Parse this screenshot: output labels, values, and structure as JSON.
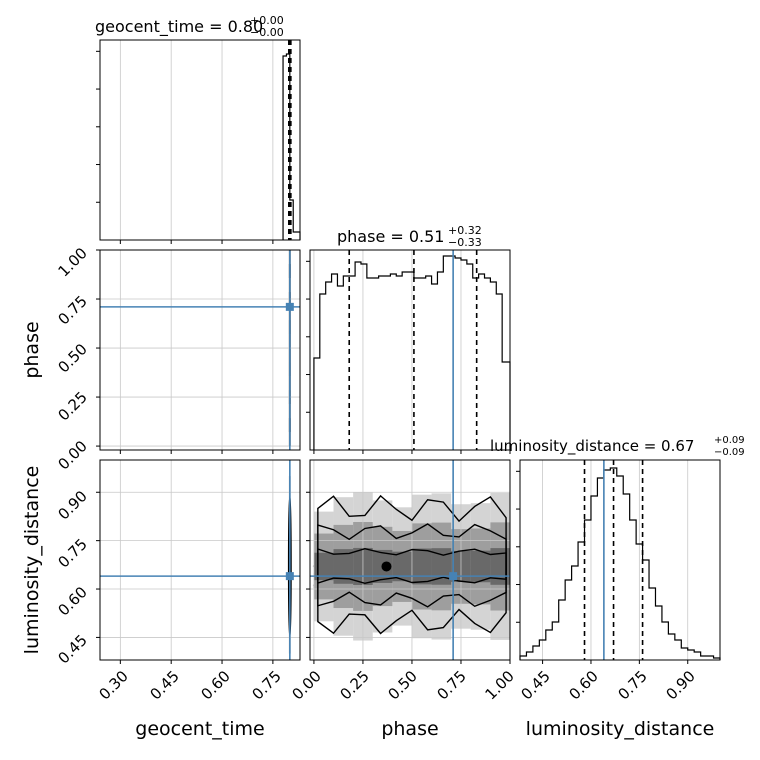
{
  "chart_data": {
    "type": "corner",
    "parameters": [
      "geocent_time",
      "phase",
      "luminosity_distance"
    ],
    "truths": {
      "geocent_time": 0.8,
      "phase": 0.71,
      "luminosity_distance": 0.64
    },
    "truth_color": "#4682b4",
    "grid": true,
    "titles": [
      {
        "param": "geocent_time",
        "main": "geocent_time = 0.80",
        "plus": "+0.00",
        "minus": "−0.00"
      },
      {
        "param": "phase",
        "main": "phase = 0.51",
        "plus": "+0.32",
        "minus": "−0.33"
      },
      {
        "param": "luminosity_distance",
        "main": "luminosity_distance = 0.67",
        "plus": "+0.09",
        "minus": "−0.09"
      }
    ],
    "axis_labels": {
      "x": [
        "geocent_time",
        "phase",
        "luminosity_distance"
      ],
      "y": [
        "phase",
        "luminosity_distance"
      ]
    },
    "ticks": {
      "geocent_time": [
        "0.30",
        "0.45",
        "0.60",
        "0.75"
      ],
      "phase": [
        "0.00",
        "0.25",
        "0.50",
        "0.75",
        "1.00"
      ],
      "luminosity_distance": [
        "0.45",
        "0.60",
        "0.75",
        "0.90"
      ]
    },
    "ranges": {
      "geocent_time": [
        0.24,
        0.83
      ],
      "phase": [
        -0.02,
        1.0
      ],
      "luminosity_distance": [
        0.38,
        1.0
      ]
    },
    "histograms": [
      {
        "param": "geocent_time",
        "edges": [
          0.78,
          0.79,
          0.8,
          0.81,
          0.83
        ],
        "counts": [
          0.92,
          0.93,
          0.2,
          0.04
        ],
        "quantiles": [
          0.797,
          0.8,
          0.803
        ]
      },
      {
        "param": "phase",
        "edges": [
          0.0,
          0.03,
          0.06,
          0.09,
          0.12,
          0.15,
          0.18,
          0.21,
          0.24,
          0.27,
          0.3,
          0.33,
          0.36,
          0.39,
          0.42,
          0.45,
          0.48,
          0.51,
          0.54,
          0.57,
          0.6,
          0.63,
          0.66,
          0.69,
          0.72,
          0.75,
          0.78,
          0.81,
          0.84,
          0.87,
          0.9,
          0.93,
          0.96,
          1.0
        ],
        "counts": [
          0.46,
          0.78,
          0.84,
          0.88,
          0.82,
          0.87,
          0.87,
          0.94,
          0.93,
          0.86,
          0.86,
          0.87,
          0.87,
          0.88,
          0.87,
          0.89,
          0.89,
          0.86,
          0.86,
          0.87,
          0.83,
          0.89,
          0.97,
          0.97,
          0.96,
          0.95,
          0.93,
          0.86,
          0.88,
          0.86,
          0.84,
          0.78,
          0.44
        ],
        "quantiles": [
          0.18,
          0.51,
          0.83
        ]
      },
      {
        "param": "luminosity_distance",
        "edges": [
          0.38,
          0.4,
          0.42,
          0.44,
          0.46,
          0.48,
          0.5,
          0.52,
          0.54,
          0.56,
          0.58,
          0.6,
          0.62,
          0.64,
          0.66,
          0.68,
          0.7,
          0.72,
          0.74,
          0.76,
          0.78,
          0.8,
          0.82,
          0.84,
          0.86,
          0.88,
          0.9,
          0.92,
          0.94,
          0.96,
          0.98,
          1.0
        ],
        "counts": [
          0.02,
          0.04,
          0.07,
          0.1,
          0.15,
          0.19,
          0.3,
          0.4,
          0.47,
          0.59,
          0.7,
          0.82,
          0.91,
          0.95,
          0.96,
          0.92,
          0.83,
          0.7,
          0.58,
          0.5,
          0.36,
          0.27,
          0.19,
          0.13,
          0.1,
          0.06,
          0.05,
          0.04,
          0.02,
          0.02,
          0.01
        ],
        "quantiles": [
          0.58,
          0.67,
          0.76
        ]
      }
    ],
    "density_2d": [
      {
        "x": "geocent_time",
        "y": "phase",
        "x_center": 0.8,
        "x_width": 0.006,
        "y_range": [
          0.0,
          1.0
        ]
      },
      {
        "x": "geocent_time",
        "y": "luminosity_distance",
        "x_center": 0.8,
        "x_width": 0.006,
        "y_center": 0.67,
        "y_width": 0.1
      },
      {
        "x": "phase",
        "y": "luminosity_distance",
        "x_range": [
          0.0,
          1.0
        ],
        "y_center": 0.67,
        "y_width": 0.09
      }
    ]
  }
}
